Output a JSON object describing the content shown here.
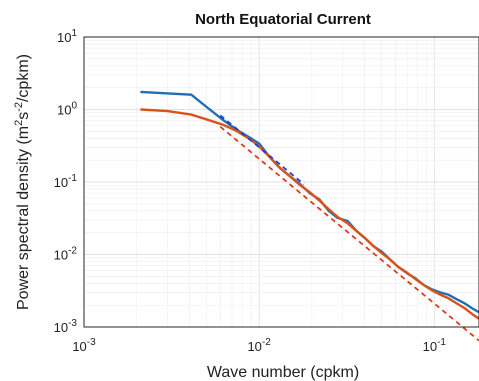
{
  "chart_data": {
    "type": "line",
    "title": "North Equatorial Current",
    "xlabel": "Wave number (cpkm)",
    "ylabel_parts": [
      "Power spectral density (m",
      "2",
      "s",
      "-2",
      "/cpkm)"
    ],
    "xscale": "log",
    "yscale": "log",
    "xlim": [
      0.001,
      0.18
    ],
    "ylim": [
      0.001,
      10
    ],
    "grid": true,
    "x_ticks": [
      {
        "base": "10",
        "exp": "-3",
        "value": 0.001
      },
      {
        "base": "10",
        "exp": "-2",
        "value": 0.01
      },
      {
        "base": "10",
        "exp": "-1",
        "value": 0.1
      }
    ],
    "y_ticks": [
      {
        "base": "10",
        "exp": "1",
        "value": 10
      },
      {
        "base": "10",
        "exp": "0",
        "value": 1
      },
      {
        "base": "10",
        "exp": "-1",
        "value": 0.1
      },
      {
        "base": "10",
        "exp": "-2",
        "value": 0.01
      },
      {
        "base": "10",
        "exp": "-3",
        "value": 0.001
      }
    ],
    "series": [
      {
        "color": "#1f6fb5",
        "style": "solid",
        "x": [
          0.0021,
          0.0041,
          0.0051,
          0.0062,
          0.0075,
          0.009,
          0.01,
          0.0115,
          0.013,
          0.015,
          0.017,
          0.0195,
          0.022,
          0.025,
          0.028,
          0.032,
          0.036,
          0.04,
          0.045,
          0.05,
          0.056,
          0.062,
          0.07,
          0.078,
          0.087,
          0.097,
          0.108,
          0.12,
          0.135,
          0.15,
          0.165,
          0.18
        ],
        "values": [
          1.75,
          1.6,
          1.05,
          0.72,
          0.52,
          0.4,
          0.34,
          0.22,
          0.16,
          0.12,
          0.095,
          0.07,
          0.058,
          0.04,
          0.032,
          0.029,
          0.021,
          0.017,
          0.013,
          0.011,
          0.0085,
          0.0068,
          0.0055,
          0.0047,
          0.0038,
          0.0033,
          0.003,
          0.0028,
          0.0024,
          0.0021,
          0.0018,
          0.0016
        ]
      },
      {
        "color": "#d95319",
        "style": "solid",
        "x": [
          0.0021,
          0.003,
          0.0041,
          0.0051,
          0.0062,
          0.0075,
          0.009,
          0.01,
          0.0115,
          0.013,
          0.015,
          0.017,
          0.0195,
          0.022,
          0.025,
          0.028,
          0.032,
          0.036,
          0.04,
          0.045,
          0.05,
          0.056,
          0.062,
          0.07,
          0.078,
          0.087,
          0.097,
          0.108,
          0.12,
          0.135,
          0.15,
          0.165,
          0.18
        ],
        "values": [
          1.0,
          0.95,
          0.85,
          0.72,
          0.62,
          0.5,
          0.38,
          0.31,
          0.22,
          0.16,
          0.12,
          0.092,
          0.072,
          0.056,
          0.042,
          0.033,
          0.027,
          0.021,
          0.017,
          0.013,
          0.0105,
          0.0085,
          0.0068,
          0.0056,
          0.0046,
          0.0038,
          0.0032,
          0.0028,
          0.0025,
          0.0021,
          0.0018,
          0.0015,
          0.0013
        ]
      },
      {
        "color": "#1f3fd0",
        "style": "dashed",
        "x": [
          0.006,
          0.012,
          0.018
        ],
        "values": [
          0.83,
          0.21,
          0.093
        ]
      },
      {
        "color": "#e03a1a",
        "style": "dashed",
        "x": [
          0.006,
          0.02,
          0.08,
          0.18
        ],
        "values": [
          0.58,
          0.052,
          0.0033,
          0.00065
        ]
      }
    ]
  }
}
